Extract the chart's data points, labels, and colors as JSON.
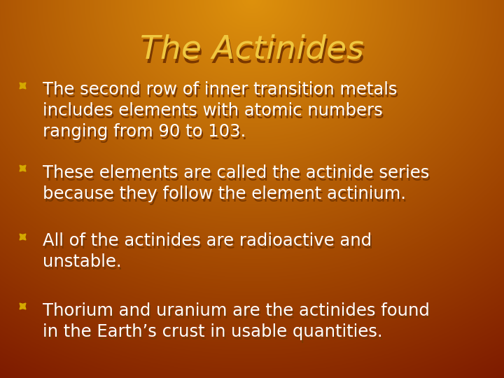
{
  "title": "The Actinides",
  "title_color": "#F0C840",
  "title_fontsize": 34,
  "bullet_color": "#D4A800",
  "text_color": "#FFFFFF",
  "bullet_fontsize": 17.5,
  "bullets": [
    "The second row of inner transition metals\nincludes elements with atomic numbers\nranging from 90 to 103.",
    "These elements are called the actinide series\nbecause they follow the element actinium.",
    "All of the actinides are radioactive and\nunstable.",
    "Thorium and uranium are the actinides found\nin the Earth’s crust in usable quantities."
  ],
  "shadow_color": "#7A3800"
}
